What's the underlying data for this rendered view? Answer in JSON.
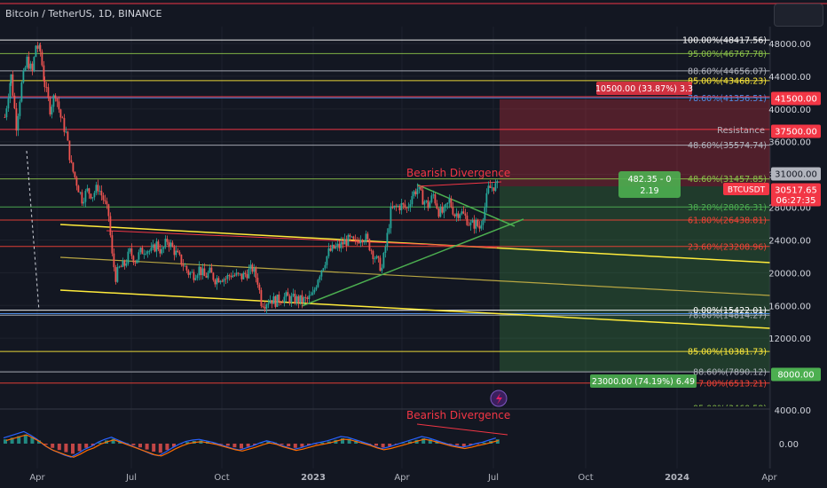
{
  "header": {
    "title": "Bitcoin / TetherUS, 1D, BINANCE"
  },
  "chart_data": {
    "type": "candlestick",
    "symbol": "BTCUSDT",
    "y_axis": {
      "ticks": [
        48000,
        44000,
        40000,
        36000,
        32000,
        28000,
        24000,
        20000,
        16000,
        12000,
        8000,
        4000
      ],
      "tick_labels": [
        "48000.00",
        "44000.00",
        "40000.00",
        "36000.00",
        "32000.00",
        "28000.00",
        "24000.00",
        "20000.00",
        "16000.00",
        "12000.00",
        "8000.00",
        "4000.00"
      ]
    },
    "x_axis": {
      "ticks": [
        "Apr",
        "Jul",
        "Oct",
        "2023",
        "Apr",
        "Jul",
        "Oct",
        "2024",
        "Apr"
      ]
    },
    "oscillator": {
      "ticks": [
        "4000.00",
        "0.00"
      ]
    },
    "fib_levels": [
      {
        "label": "100.00%(48417.56)",
        "value": 48417.56,
        "color": "#ffffff"
      },
      {
        "label": "95.00%(46767.78)",
        "value": 46767.78,
        "color": "#8bc34a"
      },
      {
        "label": "88.60%(44656.07)",
        "value": 44656.07,
        "color": "#b2b5be"
      },
      {
        "label": "85.00%(43468.23)",
        "value": 43468.23,
        "color": "#ffeb3b"
      },
      {
        "label": "78.60%(41356.51)",
        "value": 41356.51,
        "color": "#4d8fe8"
      },
      {
        "label": "48.60%(35574.74)",
        "value": 35574.74,
        "color": "#b2b5be"
      },
      {
        "label": "48.60%(31457.85)",
        "value": 31457.85,
        "color": "#8bc34a"
      },
      {
        "label": "38.20%(28026.31)",
        "value": 28026.31,
        "color": "#4caf50"
      },
      {
        "label": "61.80%(26438.81)",
        "value": 26438.81,
        "color": "#f44336"
      },
      {
        "label": "23.60%(23208.96)",
        "value": 23208.96,
        "color": "#f44336"
      },
      {
        "label": "78.60%(14814.27)",
        "value": 14814.27,
        "color": "#b2b5be"
      },
      {
        "label": "0.00%(15422.01)",
        "value": 15422.01,
        "color": "#ffffff"
      },
      {
        "label": "85.00%(10381.73)",
        "value": 10381.73,
        "color": "#ffeb3b"
      },
      {
        "label": "88.60%(7890.12)",
        "value": 7890.12,
        "color": "#b2b5be"
      },
      {
        "label": "7.00%(6513.21)",
        "value": 6513.21,
        "color": "#f44336"
      },
      {
        "label": "95.00%(3460.58)",
        "value": 3460.58,
        "color": "#8bc34a"
      }
    ],
    "price_tags": [
      {
        "label": "41500.00",
        "value": 41500,
        "color": "#f23645"
      },
      {
        "label": "37500.00",
        "value": 37500,
        "color": "#f23645"
      },
      {
        "label": "31000.00",
        "value": 31000,
        "color": "#b2b5be"
      },
      {
        "label": "30517.65",
        "sub": "06:27:35",
        "value": 30517.65,
        "color": "#f23645"
      },
      {
        "label": "8000.00",
        "value": 8000,
        "color": "#4caf50"
      }
    ],
    "annotations": {
      "stop_label": "10500.00 (33.87%) 3.3",
      "target_label": "23000.00 (74.19%) 6.49",
      "entry_label_1": "482.35 - 0",
      "entry_label_2": "2.19",
      "symbol_tag": "BTCUSDT",
      "resistance": "Resistance",
      "divergence_price": "Bearish Divergence",
      "divergence_osc": "Bearish Divergence"
    },
    "price_path": [
      [
        5,
        39000
      ],
      [
        12,
        44000
      ],
      [
        18,
        38000
      ],
      [
        24,
        43000
      ],
      [
        30,
        46000
      ],
      [
        36,
        44500
      ],
      [
        40,
        47800
      ],
      [
        45,
        47000
      ],
      [
        50,
        43000
      ],
      [
        56,
        40000
      ],
      [
        62,
        42000
      ],
      [
        68,
        39000
      ],
      [
        74,
        37000
      ],
      [
        80,
        33000
      ],
      [
        86,
        31000
      ],
      [
        92,
        29000
      ],
      [
        98,
        30000
      ],
      [
        104,
        29500
      ],
      [
        110,
        30500
      ],
      [
        116,
        29000
      ],
      [
        122,
        27000
      ],
      [
        126,
        22000
      ],
      [
        130,
        19500
      ],
      [
        134,
        20500
      ],
      [
        140,
        21000
      ],
      [
        146,
        22500
      ],
      [
        152,
        21500
      ],
      [
        158,
        22500
      ],
      [
        164,
        23000
      ],
      [
        170,
        22500
      ],
      [
        176,
        23500
      ],
      [
        182,
        22500
      ],
      [
        188,
        24000
      ],
      [
        194,
        23000
      ],
      [
        200,
        22000
      ],
      [
        206,
        21000
      ],
      [
        212,
        20000
      ],
      [
        218,
        19800
      ],
      [
        224,
        20500
      ],
      [
        230,
        19500
      ],
      [
        236,
        20000
      ],
      [
        242,
        19200
      ],
      [
        248,
        19500
      ],
      [
        254,
        19300
      ],
      [
        260,
        19800
      ],
      [
        266,
        19600
      ],
      [
        272,
        19500
      ],
      [
        278,
        20000
      ],
      [
        284,
        20500
      ],
      [
        290,
        19000
      ],
      [
        294,
        16500
      ],
      [
        298,
        16300
      ],
      [
        304,
        16800
      ],
      [
        310,
        16500
      ],
      [
        316,
        16900
      ],
      [
        322,
        17000
      ],
      [
        328,
        16800
      ],
      [
        334,
        16700
      ],
      [
        340,
        16600
      ],
      [
        346,
        16700
      ],
      [
        352,
        17200
      ],
      [
        358,
        19500
      ],
      [
        364,
        21000
      ],
      [
        370,
        22500
      ],
      [
        376,
        23000
      ],
      [
        382,
        23200
      ],
      [
        388,
        23800
      ],
      [
        394,
        24000
      ],
      [
        400,
        23500
      ],
      [
        406,
        24500
      ],
      [
        412,
        24200
      ],
      [
        418,
        22800
      ],
      [
        424,
        21500
      ],
      [
        430,
        20500
      ],
      [
        436,
        24500
      ],
      [
        440,
        27500
      ],
      [
        446,
        28000
      ],
      [
        452,
        28200
      ],
      [
        458,
        27800
      ],
      [
        464,
        29500
      ],
      [
        470,
        30300
      ],
      [
        476,
        29000
      ],
      [
        482,
        28200
      ],
      [
        488,
        29500
      ],
      [
        494,
        27500
      ],
      [
        500,
        27300
      ],
      [
        506,
        28800
      ],
      [
        512,
        27100
      ],
      [
        518,
        27500
      ],
      [
        524,
        26800
      ],
      [
        530,
        25800
      ],
      [
        536,
        26000
      ],
      [
        540,
        25500
      ],
      [
        546,
        28000
      ],
      [
        550,
        30200
      ],
      [
        556,
        30600
      ],
      [
        562,
        30500
      ]
    ],
    "osc_histogram": [
      40,
      55,
      70,
      85,
      60,
      30,
      -10,
      -40,
      -60,
      -80,
      -95,
      -70,
      -40,
      -20,
      10,
      30,
      45,
      25,
      5,
      -15,
      -35,
      -55,
      -75,
      -85,
      -60,
      -30,
      -5,
      15,
      25,
      30,
      20,
      10,
      -5,
      -20,
      -35,
      -45,
      -30,
      -15,
      5,
      20,
      10,
      -10,
      -25,
      -40,
      -30,
      -15,
      0,
      10,
      20,
      35,
      50,
      45,
      30,
      15,
      0,
      -20,
      -35,
      -25,
      -10,
      5,
      20,
      35,
      50,
      40,
      25,
      10,
      -5,
      -15,
      -25,
      -15,
      0,
      10,
      25,
      40
    ],
    "x_range": [
      0,
      870
    ],
    "y_range": [
      0,
      50000
    ],
    "grid": true
  }
}
